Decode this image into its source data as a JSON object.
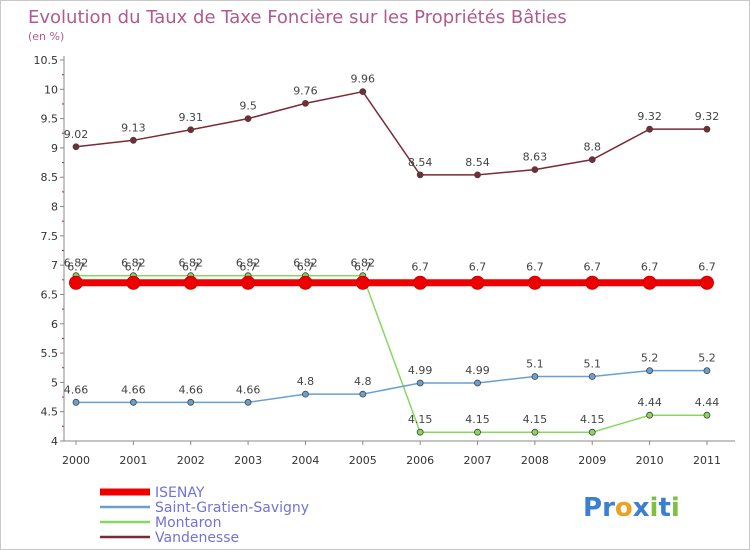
{
  "chart_data": {
    "type": "line",
    "title": "Evolution du Taux de Taxe Foncière sur les Propriétés Bâties",
    "subtitle": "(en %)",
    "xlabel": "",
    "ylabel": "",
    "categories": [
      "2000",
      "2001",
      "2002",
      "2003",
      "2004",
      "2005",
      "2006",
      "2007",
      "2008",
      "2009",
      "2010",
      "2011"
    ],
    "ylim": [
      4,
      10.5
    ],
    "yticks": [
      "4",
      "4.5",
      "5",
      "5.5",
      "6",
      "6.5",
      "7",
      "7.5",
      "8",
      "8.5",
      "9",
      "9.5",
      "10",
      "10.5"
    ],
    "grid": false,
    "legend_position": "bottom-left",
    "series": [
      {
        "name": "Vandenesse",
        "color": "#7a2a34",
        "values": [
          9.02,
          9.13,
          9.31,
          9.5,
          9.76,
          9.96,
          8.54,
          8.54,
          8.63,
          8.8,
          9.32,
          9.32
        ],
        "labels": [
          "9.02",
          "9.13",
          "9.31",
          "9.5",
          "9.76",
          "9.96",
          "8.54",
          "8.54",
          "8.63",
          "8.8",
          "9.32",
          "9.32"
        ]
      },
      {
        "name": "Montaron",
        "color": "#88d860",
        "values": [
          6.82,
          6.82,
          6.82,
          6.82,
          6.82,
          6.82,
          4.15,
          4.15,
          4.15,
          4.15,
          4.44,
          4.44
        ],
        "labels": [
          "6.82",
          "6.82",
          "6.82",
          "6.82",
          "6.82",
          "6.82",
          "4.15",
          "4.15",
          "4.15",
          "4.15",
          "4.44",
          "4.44"
        ]
      },
      {
        "name": "Saint-Gratien-Savigny",
        "color": "#6aa0d0",
        "values": [
          4.66,
          4.66,
          4.66,
          4.66,
          4.8,
          4.8,
          4.99,
          4.99,
          5.1,
          5.1,
          5.2,
          5.2
        ],
        "labels": [
          "4.66",
          "4.66",
          "4.66",
          "4.66",
          "4.8",
          "4.8",
          "4.99",
          "4.99",
          "5.1",
          "5.1",
          "5.2",
          "5.2"
        ]
      },
      {
        "name": "ISENAY",
        "color": "#ee0000",
        "values": [
          6.7,
          6.7,
          6.7,
          6.7,
          6.7,
          6.7,
          6.7,
          6.7,
          6.7,
          6.7,
          6.7,
          6.7
        ],
        "labels": [
          "6.7",
          "6.7",
          "6.7",
          "6.7",
          "6.7",
          "6.7",
          "6.7",
          "6.7",
          "6.7",
          "6.7",
          "6.7",
          "6.7"
        ]
      }
    ],
    "legend": [
      "ISENAY",
      "Saint-Gratien-Savigny",
      "Montaron",
      "Vandenesse"
    ]
  },
  "logo": {
    "text": "Proxiti",
    "letters": [
      "P",
      "r",
      "o",
      "x",
      "i",
      "t",
      "i"
    ],
    "colors": [
      "#3a7fd0",
      "#3a7fd0",
      "#f0a020",
      "#3a7fd0",
      "#80c040",
      "#3a7fd0",
      "#80c040"
    ]
  }
}
